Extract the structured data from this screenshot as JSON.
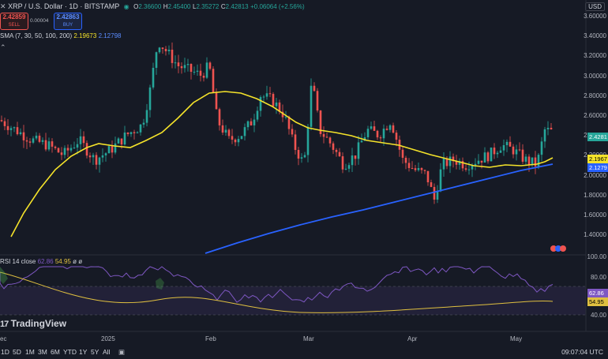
{
  "header": {
    "title": "XRP / U.S. Dollar · 1D · BITSTAMP",
    "ohlc_labels": {
      "o": "O",
      "h": "H",
      "l": "L",
      "c": "C"
    },
    "ohlc": {
      "open": "2.36600",
      "high": "2.45400",
      "low": "2.35272",
      "close": "2.42813",
      "change": "+0.06064 (+2.56%)"
    },
    "currency": "USD"
  },
  "trade": {
    "sell_price": "2.42859",
    "sell_label": "SELL",
    "spread": "0.00004",
    "buy_price": "2.42863",
    "buy_label": "BUY"
  },
  "indicators": {
    "sma_label": "SMA (7, 30, 50, 100, 200)",
    "sma_value_1": "2.19673",
    "sma_value_2": "2.12798",
    "rsi_label": "RSI 14 close",
    "rsi_value": "62.86",
    "rsi_ma_value": "54.95",
    "rsi_extra": "ø  ø"
  },
  "price_axis": [
    "3.60000",
    "3.40000",
    "3.20000",
    "3.00000",
    "2.80000",
    "2.60000",
    "2.40000",
    "2.20000",
    "2.00000",
    "1.80000",
    "1.60000",
    "1.40000"
  ],
  "price_badges": {
    "price": "2.4281",
    "sma_yellow": "2.1967",
    "sma_blue": "2.1279"
  },
  "rsi_axis": [
    "100.00",
    "80.00",
    "60.00",
    "40.00"
  ],
  "rsi_badges": {
    "rsi": "62.86",
    "rsi_ma": "54.95"
  },
  "time_axis": [
    "ec",
    "2025",
    "Feb",
    "Mar",
    "Apr",
    "May"
  ],
  "timeframes": [
    "1D",
    "5D",
    "1M",
    "3M",
    "6M",
    "YTD",
    "1Y",
    "5Y",
    "All"
  ],
  "brand": "TradingView",
  "clock": "09:07:04 UTC",
  "colors": {
    "background": "#161a25",
    "up": "#26a69a",
    "down": "#ef5350",
    "sma_yellow": "#f5e32a",
    "sma_blue": "#2962ff",
    "rsi": "#7e57c2",
    "rsi_ma": "#e0c040"
  }
}
